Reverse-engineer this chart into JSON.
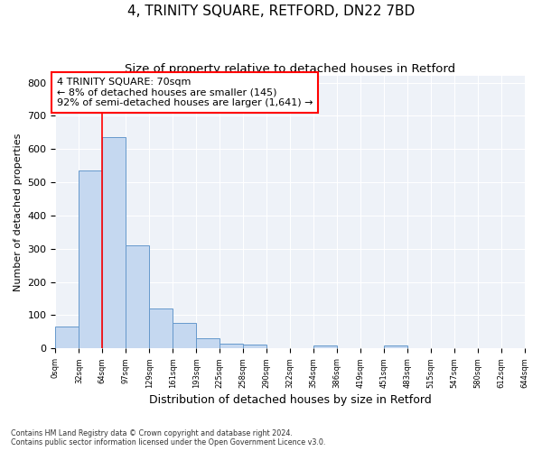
{
  "title": "4, TRINITY SQUARE, RETFORD, DN22 7BD",
  "subtitle": "Size of property relative to detached houses in Retford",
  "xlabel": "Distribution of detached houses by size in Retford",
  "ylabel": "Number of detached properties",
  "footnote1": "Contains HM Land Registry data © Crown copyright and database right 2024.",
  "footnote2": "Contains public sector information licensed under the Open Government Licence v3.0.",
  "bar_values": [
    65,
    535,
    635,
    310,
    120,
    78,
    30,
    15,
    11,
    0,
    0,
    9,
    0,
    0,
    8,
    0,
    0,
    0,
    0,
    0
  ],
  "bin_labels": [
    "0sqm",
    "32sqm",
    "64sqm",
    "97sqm",
    "129sqm",
    "161sqm",
    "193sqm",
    "225sqm",
    "258sqm",
    "290sqm",
    "322sqm",
    "354sqm",
    "386sqm",
    "419sqm",
    "451sqm",
    "483sqm",
    "515sqm",
    "547sqm",
    "580sqm",
    "612sqm",
    "644sqm"
  ],
  "bar_color": "#c5d8f0",
  "bar_edge_color": "#6699cc",
  "ylim": [
    0,
    820
  ],
  "yticks": [
    0,
    100,
    200,
    300,
    400,
    500,
    600,
    700,
    800
  ],
  "vline_x": 64,
  "annotation_title": "4 TRINITY SQUARE: 70sqm",
  "annotation_line1": "← 8% of detached houses are smaller (145)",
  "annotation_line2": "92% of semi-detached houses are larger (1,641) →",
  "annotation_box_color": "white",
  "annotation_box_edge_color": "red",
  "vline_color": "red",
  "bg_color": "white",
  "plot_bg_color": "#eef2f8",
  "grid_color": "white",
  "title_fontsize": 11,
  "subtitle_fontsize": 9.5
}
